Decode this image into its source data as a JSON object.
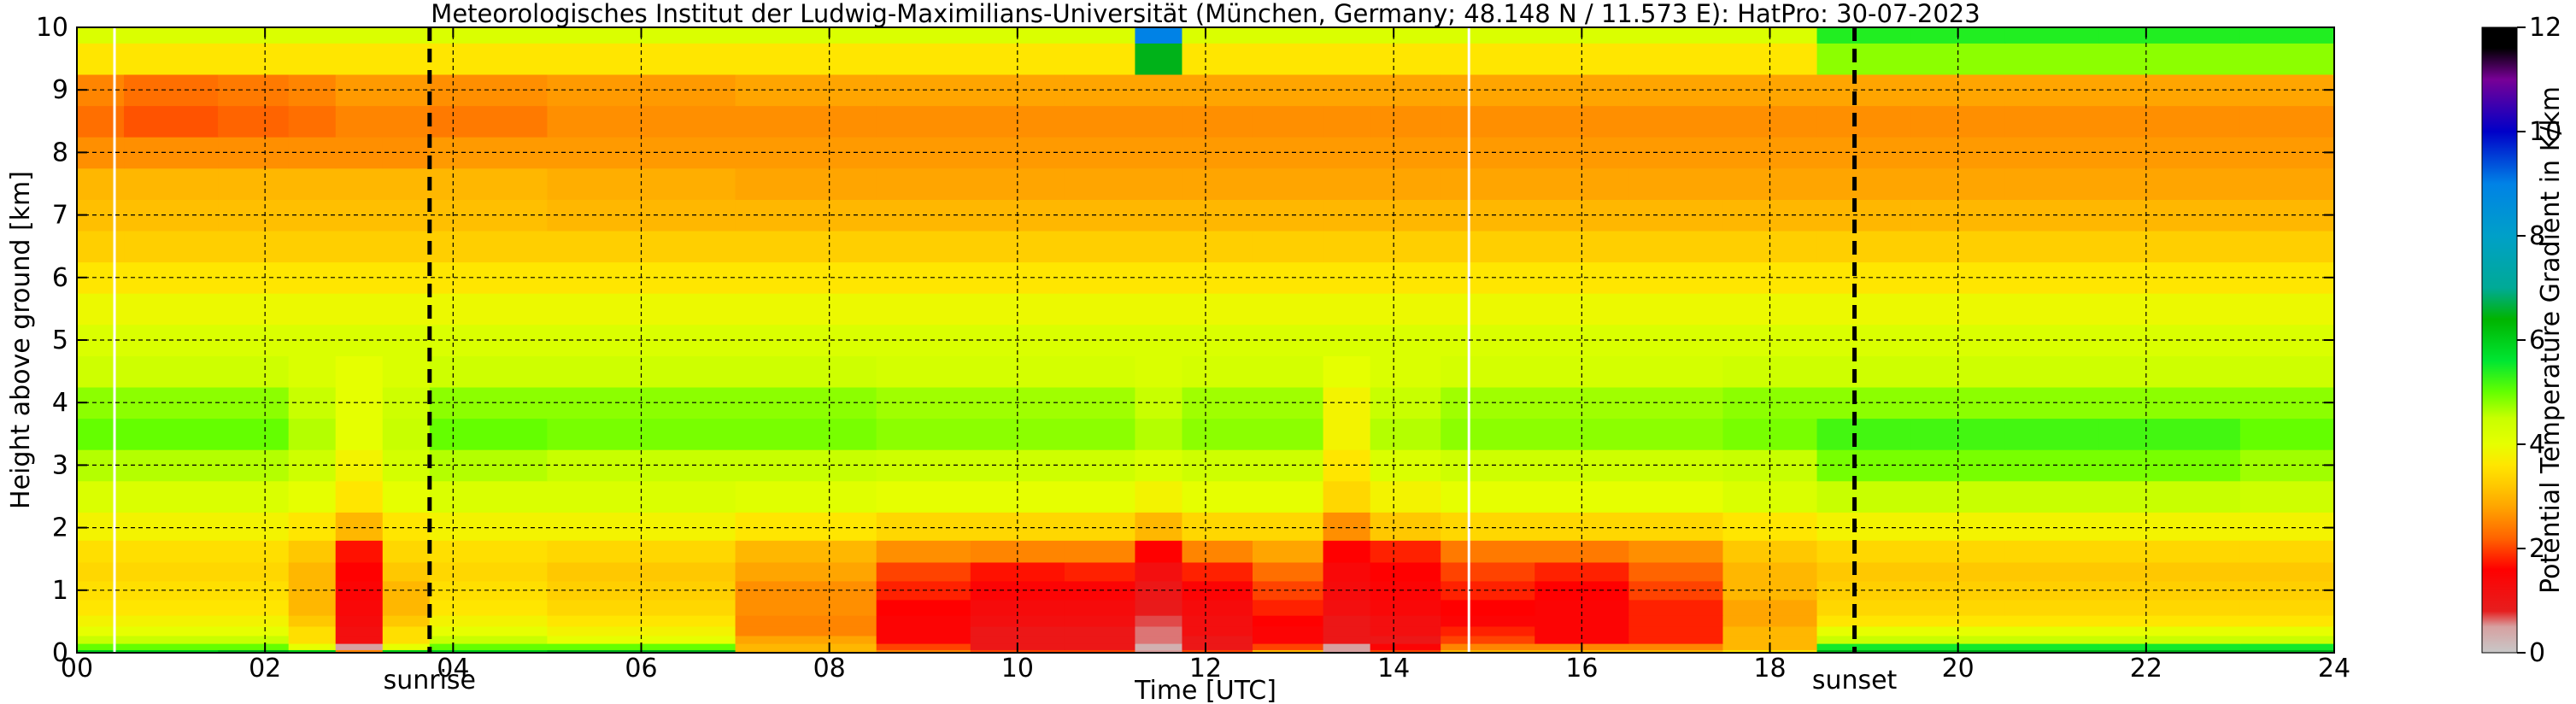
{
  "chart_data": {
    "type": "heatmap",
    "title": "Meteorologisches Institut der Ludwig-Maximilians-Universität (München, Germany; 48.148 N / 11.573 E):    HatPro: 30-07-2023",
    "xlabel": "Time [UTC]",
    "ylabel": "Height above ground [km]",
    "colorbar_label": "Potential Temperature Gradient in K/km",
    "xlim": [
      0,
      24
    ],
    "ylim": [
      0,
      10
    ],
    "clim": [
      0,
      12
    ],
    "x_ticks": [
      0,
      2,
      4,
      6,
      8,
      10,
      12,
      14,
      16,
      18,
      20,
      22,
      24
    ],
    "x_tick_labels": [
      "00",
      "02",
      "04",
      "06",
      "08",
      "10",
      "12",
      "14",
      "16",
      "18",
      "20",
      "22",
      "24"
    ],
    "y_ticks": [
      0,
      1,
      2,
      3,
      4,
      5,
      6,
      7,
      8,
      9,
      10
    ],
    "y_tick_labels": [
      "0",
      "1",
      "2",
      "3",
      "4",
      "5",
      "6",
      "7",
      "8",
      "9",
      "10"
    ],
    "colorbar_ticks": [
      0,
      2,
      4,
      6,
      8,
      10,
      12
    ],
    "colorbar_tick_labels": [
      "0",
      "2",
      "4",
      "6",
      "8",
      "10",
      "12"
    ],
    "grid": true,
    "markers": [
      {
        "x": 3.75,
        "label": "sunrise"
      },
      {
        "x": 18.9,
        "label": "sunset"
      }
    ],
    "data_gaps": [
      0.4,
      14.8
    ],
    "colormap": [
      {
        "value": 0,
        "color": "#c8c8c8"
      },
      {
        "value": 0.5,
        "color": "#d7a0a0"
      },
      {
        "value": 0.8,
        "color": "#e61e1e"
      },
      {
        "value": 1.6,
        "color": "#ff0000"
      },
      {
        "value": 2.2,
        "color": "#ff6400"
      },
      {
        "value": 2.8,
        "color": "#ffa500"
      },
      {
        "value": 3.2,
        "color": "#ffc800"
      },
      {
        "value": 3.6,
        "color": "#ffe600"
      },
      {
        "value": 4.0,
        "color": "#e6ff00"
      },
      {
        "value": 4.5,
        "color": "#c8ff00"
      },
      {
        "value": 5.0,
        "color": "#64ff00"
      },
      {
        "value": 5.6,
        "color": "#00e632"
      },
      {
        "value": 6.4,
        "color": "#00b400"
      },
      {
        "value": 7.0,
        "color": "#00aa96"
      },
      {
        "value": 8.0,
        "color": "#00a0c8"
      },
      {
        "value": 9.0,
        "color": "#0082e6"
      },
      {
        "value": 10.0,
        "color": "#0000c8"
      },
      {
        "value": 11.0,
        "color": "#780096"
      },
      {
        "value": 11.6,
        "color": "#000000"
      }
    ],
    "height_levels_km": [
      0,
      0.1,
      0.2,
      0.35,
      0.5,
      0.7,
      1.0,
      1.3,
      1.6,
      2.0,
      2.5,
      3.0,
      3.5,
      4.0,
      4.5,
      5.0,
      5.5,
      6.0,
      6.5,
      7.0,
      7.5,
      8.0,
      8.5,
      9.0,
      9.5,
      10.0
    ],
    "time_h": [
      0,
      1,
      2,
      2.5,
      3,
      3.5,
      4,
      6,
      8,
      9,
      10,
      11,
      11.5,
      12,
      13,
      13.5,
      14,
      15,
      16,
      17,
      18,
      19,
      20,
      21,
      22,
      24
    ],
    "values_by_height": [
      [
        6.0,
        6.0,
        6.5,
        6.0,
        2.5,
        6.0,
        6.0,
        6.5,
        3.0,
        2.5,
        2.0,
        2.0,
        0.5,
        2.0,
        3.0,
        0.5,
        2.0,
        3.0,
        3.0,
        3.0,
        3.5,
        6.5,
        6.5,
        6.5,
        6.5,
        6.5
      ],
      [
        5.0,
        5.0,
        5.0,
        4.0,
        0.5,
        4.0,
        5.0,
        5.0,
        3.0,
        2.0,
        1.0,
        1.0,
        0.3,
        1.0,
        2.0,
        0.5,
        1.5,
        2.5,
        2.5,
        2.5,
        3.0,
        5.5,
        5.5,
        5.5,
        5.5,
        5.5
      ],
      [
        4.5,
        4.5,
        4.5,
        3.5,
        1.2,
        3.5,
        4.5,
        4.0,
        2.8,
        1.5,
        1.0,
        1.0,
        0.6,
        1.0,
        1.5,
        1.0,
        1.0,
        2.0,
        1.5,
        1.8,
        3.0,
        4.5,
        4.5,
        4.5,
        4.5,
        4.5
      ],
      [
        4.0,
        4.0,
        4.0,
        3.5,
        1.2,
        3.5,
        4.0,
        3.8,
        2.5,
        1.5,
        1.0,
        1.0,
        0.6,
        1.2,
        1.5,
        1.0,
        1.2,
        1.8,
        1.5,
        1.8,
        3.0,
        4.0,
        4.0,
        4.0,
        4.0,
        4.0
      ],
      [
        3.8,
        3.8,
        3.8,
        3.2,
        1.3,
        3.2,
        3.8,
        3.6,
        2.5,
        1.5,
        1.2,
        1.2,
        0.7,
        1.2,
        1.6,
        1.0,
        1.2,
        1.5,
        1.5,
        1.8,
        2.8,
        3.6,
        3.6,
        3.6,
        3.6,
        3.6
      ],
      [
        3.6,
        3.6,
        3.6,
        3.0,
        1.4,
        3.0,
        3.6,
        3.4,
        2.6,
        1.6,
        1.3,
        1.3,
        0.9,
        1.3,
        1.8,
        1.2,
        1.4,
        1.6,
        1.5,
        1.8,
        2.8,
        3.4,
        3.4,
        3.4,
        3.4,
        3.4
      ],
      [
        3.5,
        3.5,
        3.5,
        3.0,
        1.5,
        3.0,
        3.5,
        3.3,
        2.6,
        1.8,
        1.5,
        1.5,
        1.0,
        1.5,
        2.0,
        1.3,
        1.5,
        1.8,
        1.6,
        2.0,
        3.0,
        3.3,
        3.3,
        3.3,
        3.3,
        3.3
      ],
      [
        3.4,
        3.4,
        3.4,
        3.0,
        1.6,
        3.2,
        3.4,
        3.2,
        2.8,
        2.0,
        1.7,
        1.8,
        1.2,
        1.8,
        2.3,
        1.4,
        1.6,
        2.0,
        1.8,
        2.2,
        3.0,
        3.2,
        3.2,
        3.2,
        3.2,
        3.2
      ],
      [
        3.5,
        3.5,
        3.5,
        3.2,
        1.7,
        3.4,
        3.5,
        3.4,
        3.0,
        2.6,
        2.5,
        2.5,
        1.6,
        2.5,
        2.8,
        1.6,
        1.8,
        2.4,
        2.4,
        2.6,
        3.2,
        3.4,
        3.4,
        3.4,
        3.4,
        3.4
      ],
      [
        3.8,
        3.8,
        3.8,
        3.6,
        3.0,
        3.6,
        3.8,
        3.8,
        3.6,
        3.4,
        3.4,
        3.4,
        3.0,
        3.4,
        3.4,
        2.6,
        3.2,
        3.4,
        3.4,
        3.4,
        3.6,
        3.8,
        3.8,
        3.8,
        3.8,
        3.8
      ],
      [
        4.2,
        4.2,
        4.2,
        4.0,
        3.6,
        4.0,
        4.2,
        4.2,
        4.1,
        4.0,
        4.0,
        4.0,
        3.8,
        4.0,
        4.0,
        3.4,
        3.8,
        4.0,
        4.0,
        4.0,
        4.2,
        4.5,
        4.5,
        4.5,
        4.5,
        4.4
      ],
      [
        4.6,
        4.6,
        4.6,
        4.4,
        3.8,
        4.3,
        4.6,
        4.5,
        4.5,
        4.4,
        4.4,
        4.4,
        4.2,
        4.4,
        4.4,
        3.6,
        4.2,
        4.4,
        4.4,
        4.4,
        4.5,
        4.9,
        4.9,
        4.9,
        4.9,
        4.7
      ],
      [
        5.0,
        5.0,
        5.0,
        4.6,
        4.0,
        4.5,
        5.0,
        4.9,
        4.9,
        4.8,
        4.8,
        4.8,
        4.6,
        4.8,
        4.8,
        3.8,
        4.6,
        4.8,
        4.8,
        4.8,
        4.9,
        5.2,
        5.2,
        5.2,
        5.2,
        5.0
      ],
      [
        4.8,
        4.8,
        4.8,
        4.5,
        4.0,
        4.4,
        4.8,
        4.8,
        4.8,
        4.7,
        4.7,
        4.7,
        4.5,
        4.7,
        4.7,
        3.8,
        4.5,
        4.7,
        4.7,
        4.7,
        4.8,
        4.8,
        4.8,
        4.8,
        4.8,
        4.8
      ],
      [
        4.4,
        4.4,
        4.4,
        4.2,
        4.0,
        4.2,
        4.4,
        4.4,
        4.4,
        4.3,
        4.3,
        4.3,
        4.2,
        4.3,
        4.3,
        4.0,
        4.2,
        4.3,
        4.3,
        4.3,
        4.4,
        4.4,
        4.4,
        4.4,
        4.4,
        4.4
      ],
      [
        4.2,
        4.2,
        4.2,
        4.2,
        4.2,
        4.2,
        4.2,
        4.2,
        4.2,
        4.2,
        4.2,
        4.2,
        4.2,
        4.2,
        4.2,
        4.2,
        4.2,
        4.2,
        4.2,
        4.2,
        4.2,
        4.2,
        4.2,
        4.2,
        4.2,
        4.2
      ],
      [
        3.9,
        3.9,
        3.9,
        3.9,
        3.9,
        3.9,
        3.9,
        3.9,
        3.9,
        3.9,
        3.9,
        3.9,
        3.9,
        3.9,
        3.9,
        3.9,
        3.9,
        3.9,
        3.9,
        3.9,
        3.9,
        3.9,
        3.9,
        3.9,
        3.9,
        3.9
      ],
      [
        3.6,
        3.6,
        3.6,
        3.6,
        3.6,
        3.6,
        3.6,
        3.6,
        3.6,
        3.6,
        3.6,
        3.6,
        3.6,
        3.6,
        3.6,
        3.6,
        3.6,
        3.6,
        3.6,
        3.6,
        3.6,
        3.6,
        3.6,
        3.6,
        3.6,
        3.6
      ],
      [
        3.3,
        3.3,
        3.3,
        3.3,
        3.3,
        3.3,
        3.3,
        3.3,
        3.3,
        3.3,
        3.3,
        3.3,
        3.3,
        3.3,
        3.3,
        3.3,
        3.3,
        3.3,
        3.3,
        3.3,
        3.3,
        3.3,
        3.3,
        3.3,
        3.3,
        3.3
      ],
      [
        3.1,
        3.1,
        3.1,
        3.1,
        3.1,
        3.1,
        3.1,
        3.0,
        3.0,
        3.0,
        3.0,
        3.0,
        3.0,
        3.0,
        3.0,
        3.0,
        3.0,
        3.0,
        3.0,
        3.0,
        3.0,
        3.0,
        3.0,
        3.0,
        3.0,
        3.0
      ],
      [
        3.0,
        3.0,
        3.0,
        3.0,
        3.0,
        3.0,
        3.0,
        2.9,
        2.8,
        2.8,
        2.8,
        2.8,
        2.8,
        2.8,
        2.8,
        2.8,
        2.8,
        2.8,
        2.8,
        2.8,
        2.8,
        2.8,
        2.8,
        2.8,
        2.8,
        2.8
      ],
      [
        2.6,
        2.6,
        2.6,
        2.6,
        2.6,
        2.6,
        2.7,
        2.7,
        2.7,
        2.7,
        2.7,
        2.7,
        2.7,
        2.7,
        2.7,
        2.7,
        2.7,
        2.7,
        2.7,
        2.7,
        2.7,
        2.7,
        2.7,
        2.7,
        2.7,
        2.7
      ],
      [
        2.3,
        2.1,
        2.2,
        2.3,
        2.5,
        2.5,
        2.4,
        2.6,
        2.6,
        2.6,
        2.6,
        2.6,
        2.6,
        2.6,
        2.6,
        2.6,
        2.6,
        2.6,
        2.6,
        2.6,
        2.6,
        2.6,
        2.6,
        2.6,
        2.6,
        2.6
      ],
      [
        2.5,
        2.3,
        2.4,
        2.5,
        2.7,
        2.7,
        2.6,
        2.7,
        2.8,
        2.8,
        2.8,
        2.8,
        2.8,
        2.8,
        2.8,
        2.8,
        2.8,
        2.8,
        2.8,
        2.8,
        2.8,
        2.8,
        2.8,
        2.8,
        2.8,
        2.8
      ],
      [
        3.6,
        3.6,
        3.6,
        3.6,
        3.6,
        3.6,
        3.6,
        3.6,
        3.6,
        3.6,
        3.6,
        3.6,
        6.5,
        3.6,
        3.6,
        3.6,
        3.6,
        3.6,
        3.6,
        3.6,
        3.6,
        4.8,
        4.8,
        4.8,
        4.8,
        4.8
      ],
      [
        4.2,
        4.2,
        4.2,
        4.2,
        4.2,
        4.2,
        4.2,
        4.2,
        4.2,
        4.2,
        4.2,
        4.2,
        9.0,
        4.2,
        4.2,
        4.2,
        4.2,
        4.2,
        4.2,
        4.2,
        4.2,
        5.4,
        5.4,
        5.4,
        5.4,
        5.4
      ]
    ]
  }
}
